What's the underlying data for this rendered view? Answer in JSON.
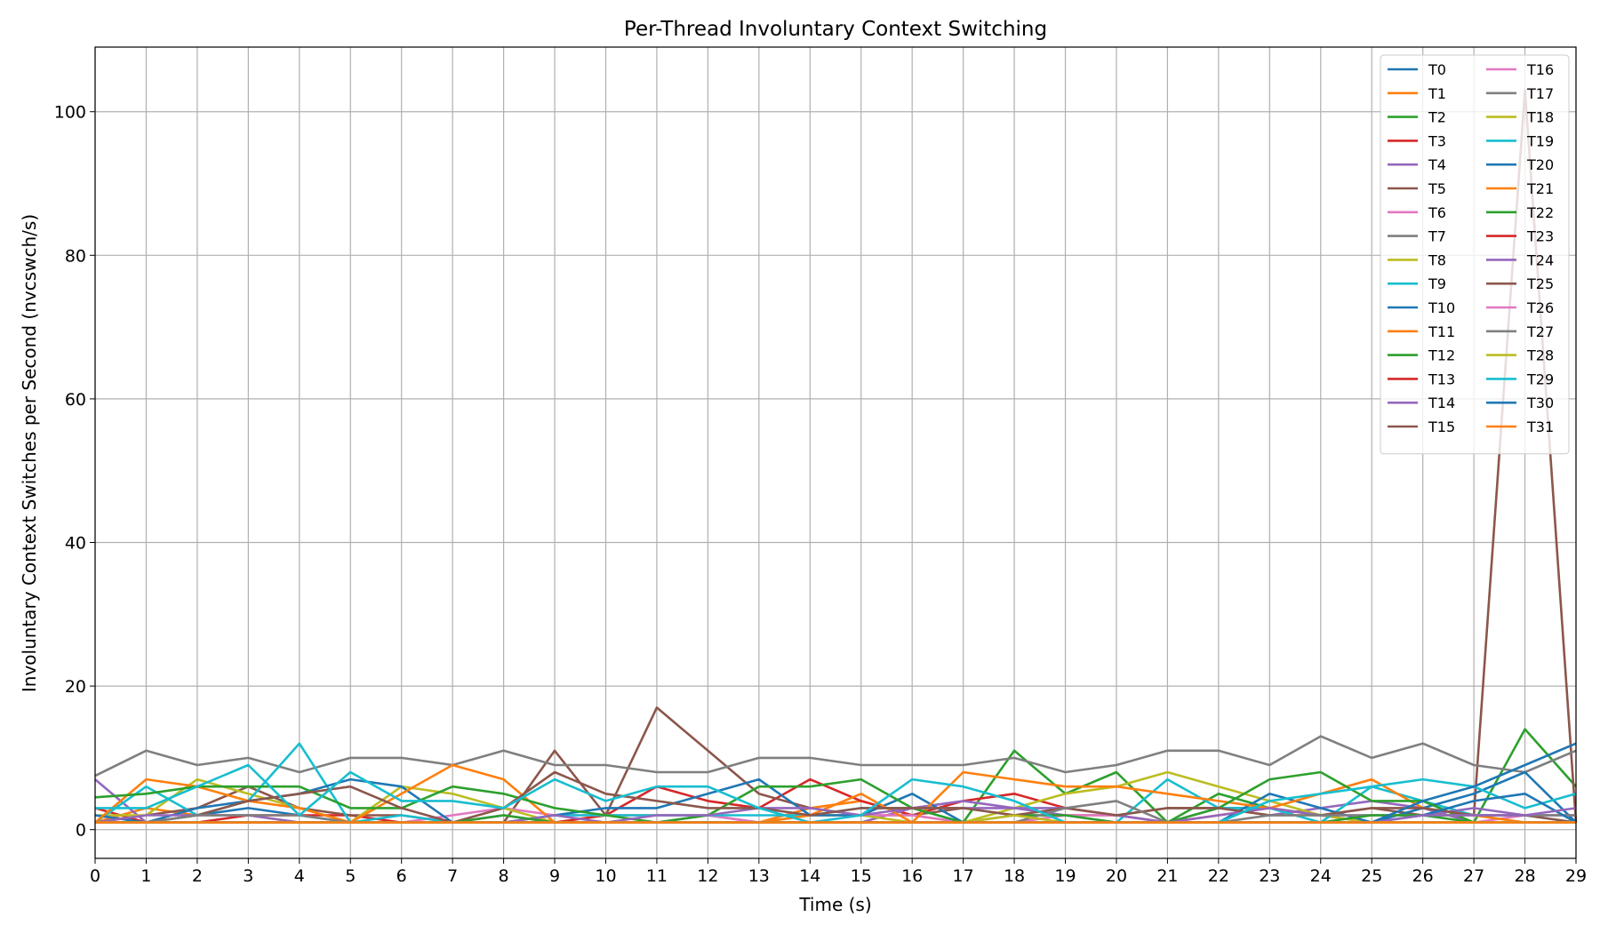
{
  "chart_data": {
    "type": "line",
    "title": "Per-Thread Involuntary Context Switching",
    "xlabel": "Time (s)",
    "ylabel": "Involuntary Context Switches per Second (nvcswch/s)",
    "xlim": [
      0,
      29
    ],
    "ylim": [
      -4,
      109
    ],
    "x_ticks": [
      0,
      1,
      2,
      3,
      4,
      5,
      6,
      7,
      8,
      9,
      10,
      11,
      12,
      13,
      14,
      15,
      16,
      17,
      18,
      19,
      20,
      21,
      22,
      23,
      24,
      25,
      26,
      27,
      28,
      29
    ],
    "y_ticks": [
      0,
      20,
      40,
      60,
      80,
      100
    ],
    "grid": true,
    "legend_position": "top-right",
    "legend_columns": 2,
    "x": [
      0,
      1,
      2,
      3,
      4,
      5,
      6,
      7,
      8,
      9,
      10,
      11,
      12,
      13,
      14,
      15,
      16,
      17,
      18,
      19,
      20,
      21,
      22,
      23,
      24,
      25,
      26,
      27,
      28,
      29
    ],
    "series": [
      {
        "name": "T0",
        "color": "#1f77b4",
        "values": [
          2,
          1,
          2,
          3,
          2,
          1,
          1,
          1,
          1,
          1,
          1,
          1,
          1,
          1,
          1,
          1,
          1,
          1,
          1,
          1,
          1,
          1,
          1,
          1,
          1,
          1,
          1,
          1,
          1,
          1
        ]
      },
      {
        "name": "T1",
        "color": "#ff7f0e",
        "values": [
          1,
          3,
          2,
          2,
          1,
          1,
          1,
          1,
          1,
          1,
          2,
          2,
          2,
          1,
          3,
          4,
          2,
          1,
          1,
          1,
          1,
          1,
          1,
          1,
          1,
          1,
          1,
          1,
          1,
          1
        ]
      },
      {
        "name": "T2",
        "color": "#2ca02c",
        "values": [
          1,
          1,
          1,
          1,
          1,
          1,
          1,
          1,
          1,
          1,
          1,
          1,
          1,
          1,
          1,
          1,
          1,
          1,
          11,
          5,
          8,
          1,
          5,
          3,
          2,
          1,
          1,
          1,
          14,
          6
        ]
      },
      {
        "name": "T3",
        "color": "#d62728",
        "values": [
          3,
          1,
          1,
          2,
          2,
          2,
          1,
          1,
          1,
          1,
          2,
          6,
          4,
          3,
          7,
          4,
          2,
          4,
          5,
          3,
          2,
          1,
          2,
          3,
          2,
          1,
          1,
          1,
          1,
          1
        ]
      },
      {
        "name": "T4",
        "color": "#9467bd",
        "values": [
          7,
          1,
          1,
          1,
          1,
          1,
          1,
          1,
          2,
          1,
          1,
          1,
          2,
          1,
          1,
          1,
          3,
          4,
          3,
          2,
          1,
          1,
          3,
          2,
          3,
          4,
          3,
          1,
          1,
          1
        ]
      },
      {
        "name": "T5",
        "color": "#8c564b",
        "values": [
          1,
          2,
          3,
          6,
          3,
          2,
          2,
          1,
          1,
          11,
          2,
          17,
          11,
          5,
          3,
          2,
          2,
          3,
          2,
          2,
          2,
          3,
          3,
          3,
          2,
          3,
          2,
          2,
          103,
          1
        ]
      },
      {
        "name": "T6",
        "color": "#e377c2",
        "values": [
          1,
          1,
          1,
          1,
          1,
          1,
          1,
          2,
          3,
          2,
          2,
          2,
          2,
          1,
          2,
          2,
          2,
          1,
          1,
          2,
          2,
          1,
          1,
          1,
          1,
          1,
          1,
          1,
          2,
          2
        ]
      },
      {
        "name": "T7",
        "color": "#7f7f7f",
        "values": [
          7.5,
          11,
          9,
          10,
          8,
          10,
          10,
          9,
          11,
          9,
          9,
          8,
          8,
          10,
          10,
          9,
          9,
          9,
          10,
          8,
          9,
          11,
          11,
          9,
          13,
          10,
          12,
          9,
          8,
          11
        ]
      },
      {
        "name": "T8",
        "color": "#bcbd22",
        "values": [
          2,
          2,
          7,
          5,
          3,
          1,
          6,
          5,
          3,
          1,
          1,
          1,
          1,
          1,
          2,
          2,
          1,
          1,
          3,
          5,
          6,
          8,
          6,
          4,
          2,
          1,
          2,
          2,
          1,
          1
        ]
      },
      {
        "name": "T9",
        "color": "#17becf",
        "values": [
          1,
          6,
          2,
          4,
          12,
          1,
          2,
          1,
          1,
          2,
          2,
          2,
          2,
          2,
          2,
          3,
          3,
          1,
          1,
          1,
          1,
          7,
          3,
          3,
          1,
          6,
          4,
          2,
          2,
          1
        ]
      },
      {
        "name": "T10",
        "color": "#1f77b4",
        "values": [
          2,
          1,
          3,
          4,
          5,
          7,
          6,
          1,
          1,
          2,
          3,
          3,
          5,
          7,
          2,
          2,
          5,
          1,
          1,
          1,
          1,
          1,
          1,
          5,
          3,
          1,
          3,
          5,
          8,
          1
        ]
      },
      {
        "name": "T11",
        "color": "#ff7f0e",
        "values": [
          1,
          7,
          6,
          4,
          3,
          1,
          5,
          9,
          7,
          1,
          1,
          1,
          1,
          1,
          2,
          5,
          1,
          8,
          7,
          6,
          6,
          5,
          4,
          3,
          5,
          7,
          3,
          2,
          1,
          1
        ]
      },
      {
        "name": "T12",
        "color": "#2ca02c",
        "values": [
          4.5,
          5,
          6,
          6,
          6,
          3,
          3,
          6,
          5,
          3,
          2,
          1,
          2,
          6,
          6,
          7,
          3,
          1,
          2,
          2,
          1,
          1,
          3,
          7,
          8,
          4,
          4,
          1,
          1,
          1
        ]
      },
      {
        "name": "T13",
        "color": "#d62728",
        "values": [
          1,
          1,
          1,
          1,
          1,
          1,
          1,
          1,
          1,
          1,
          1,
          1,
          1,
          1,
          1,
          1,
          1,
          1,
          1,
          1,
          1,
          1,
          1,
          1,
          1,
          1,
          1,
          1,
          1,
          1
        ]
      },
      {
        "name": "T14",
        "color": "#9467bd",
        "values": [
          1,
          2,
          2,
          2,
          1,
          1,
          1,
          1,
          1,
          2,
          1,
          2,
          2,
          3,
          3,
          2,
          3,
          3,
          3,
          3,
          2,
          1,
          2,
          3,
          2,
          2,
          2,
          3,
          2,
          2
        ]
      },
      {
        "name": "T15",
        "color": "#8c564b",
        "values": [
          1,
          1,
          2,
          4,
          5,
          6,
          3,
          1,
          3,
          8,
          5,
          4,
          3,
          3,
          2,
          3,
          3,
          3,
          2,
          3,
          2,
          3,
          3,
          2,
          2,
          3,
          3,
          2,
          2,
          1
        ]
      },
      {
        "name": "T16",
        "color": "#e377c2",
        "values": [
          1,
          1,
          1,
          1,
          1,
          1,
          1,
          1,
          1,
          1,
          1,
          1,
          1,
          1,
          1,
          1,
          1,
          1,
          1,
          1,
          1,
          1,
          1,
          1,
          1,
          1,
          1,
          1,
          1,
          1
        ]
      },
      {
        "name": "T17",
        "color": "#7f7f7f",
        "values": [
          1,
          1,
          2,
          2,
          2,
          1,
          1,
          1,
          2,
          1,
          1,
          1,
          1,
          1,
          1,
          1,
          1,
          1,
          1,
          3,
          4,
          1,
          1,
          2,
          2,
          2,
          2,
          2,
          2,
          2
        ]
      },
      {
        "name": "T18",
        "color": "#bcbd22",
        "values": [
          1,
          1,
          1,
          1,
          1,
          1,
          1,
          1,
          1,
          1,
          1,
          1,
          1,
          1,
          1,
          1,
          1,
          1,
          2,
          1,
          1,
          1,
          1,
          1,
          1,
          1,
          1,
          1,
          1,
          1
        ]
      },
      {
        "name": "T19",
        "color": "#17becf",
        "values": [
          3,
          3,
          6,
          9,
          2,
          8,
          4,
          4,
          3,
          7,
          4,
          6,
          6,
          3,
          1,
          2,
          7,
          6,
          4,
          1,
          1,
          1,
          1,
          4,
          5,
          6,
          7,
          6,
          3,
          5
        ]
      },
      {
        "name": "T20",
        "color": "#1f77b4",
        "values": [
          1,
          1,
          1,
          1,
          1,
          1,
          1,
          1,
          1,
          1,
          1,
          1,
          1,
          1,
          1,
          1,
          1,
          1,
          1,
          1,
          1,
          1,
          1,
          1,
          1,
          1,
          2,
          4,
          5,
          1
        ]
      },
      {
        "name": "T21",
        "color": "#ff7f0e",
        "values": [
          1,
          1,
          1,
          1,
          1,
          1,
          1,
          1,
          1,
          1,
          1,
          1,
          1,
          1,
          1,
          1,
          1,
          1,
          1,
          1,
          1,
          1,
          1,
          1,
          1,
          1,
          1,
          1,
          1,
          1
        ]
      },
      {
        "name": "T22",
        "color": "#2ca02c",
        "values": [
          1,
          1,
          1,
          1,
          1,
          1,
          1,
          1,
          2,
          1,
          1,
          1,
          1,
          1,
          1,
          1,
          1,
          1,
          1,
          1,
          1,
          1,
          1,
          1,
          1,
          2,
          2,
          1,
          1,
          1
        ]
      },
      {
        "name": "T23",
        "color": "#d62728",
        "values": [
          1,
          1,
          1,
          1,
          1,
          1,
          1,
          1,
          1,
          1,
          1,
          1,
          1,
          1,
          1,
          1,
          1,
          1,
          1,
          1,
          1,
          1,
          1,
          1,
          1,
          1,
          1,
          1,
          1,
          1
        ]
      },
      {
        "name": "T24",
        "color": "#9467bd",
        "values": [
          1,
          1,
          1,
          1,
          1,
          1,
          1,
          1,
          1,
          1,
          1,
          1,
          1,
          1,
          1,
          1,
          1,
          1,
          1,
          1,
          1,
          1,
          1,
          1,
          1,
          1,
          2,
          2,
          2,
          3
        ]
      },
      {
        "name": "T25",
        "color": "#8c564b",
        "values": [
          1,
          1,
          1,
          1,
          1,
          1,
          1,
          1,
          1,
          1,
          1,
          1,
          1,
          1,
          1,
          1,
          1,
          1,
          1,
          1,
          1,
          1,
          1,
          1,
          1,
          1,
          1,
          1,
          1,
          1
        ]
      },
      {
        "name": "T26",
        "color": "#e377c2",
        "values": [
          1,
          1,
          1,
          1,
          1,
          1,
          1,
          1,
          1,
          1,
          1,
          1,
          1,
          1,
          1,
          1,
          1,
          1,
          1,
          1,
          1,
          1,
          1,
          1,
          1,
          1,
          1,
          1,
          1,
          1
        ]
      },
      {
        "name": "T27",
        "color": "#7f7f7f",
        "values": [
          1,
          1,
          1,
          1,
          1,
          1,
          1,
          1,
          1,
          1,
          1,
          1,
          1,
          1,
          1,
          1,
          1,
          1,
          1,
          1,
          1,
          1,
          1,
          1,
          1,
          1,
          1,
          1,
          1,
          1
        ]
      },
      {
        "name": "T28",
        "color": "#bcbd22",
        "values": [
          1,
          1,
          1,
          1,
          1,
          1,
          1,
          1,
          1,
          1,
          1,
          1,
          1,
          1,
          1,
          1,
          1,
          1,
          1,
          1,
          1,
          1,
          1,
          1,
          1,
          1,
          1,
          1,
          1,
          1
        ]
      },
      {
        "name": "T29",
        "color": "#17becf",
        "values": [
          1,
          1,
          1,
          1,
          1,
          1,
          1,
          1,
          1,
          1,
          1,
          1,
          1,
          1,
          1,
          1,
          1,
          1,
          1,
          1,
          1,
          1,
          1,
          1,
          1,
          1,
          1,
          1,
          1,
          1
        ]
      },
      {
        "name": "T30",
        "color": "#1f77b4",
        "values": [
          1,
          1,
          1,
          1,
          1,
          1,
          1,
          1,
          1,
          1,
          1,
          1,
          1,
          1,
          1,
          1,
          1,
          1,
          1,
          1,
          1,
          1,
          1,
          1,
          1,
          1,
          4,
          6,
          9,
          12
        ]
      },
      {
        "name": "T31",
        "color": "#ff7f0e",
        "values": [
          1,
          1,
          1,
          1,
          1,
          1,
          1,
          1,
          1,
          1,
          1,
          1,
          1,
          1,
          1,
          1,
          1,
          1,
          1,
          1,
          1,
          1,
          1,
          1,
          1,
          1,
          1,
          1,
          1,
          1
        ]
      }
    ]
  }
}
